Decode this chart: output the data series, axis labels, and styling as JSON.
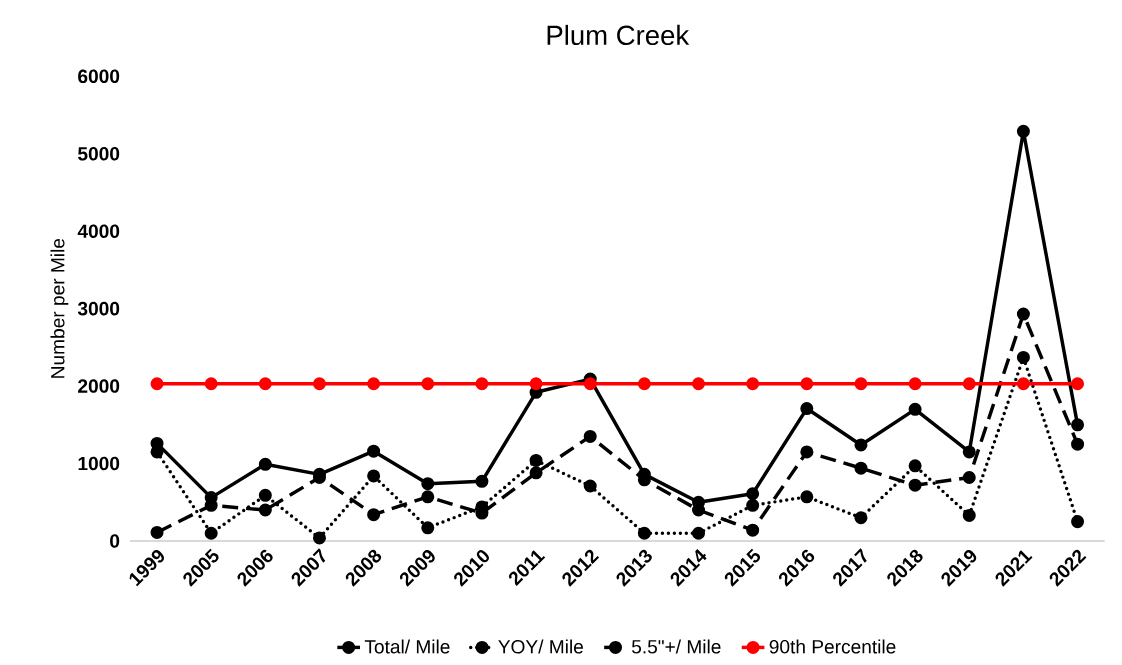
{
  "chart_data": {
    "type": "line",
    "title": "Plum Creek",
    "ylabel": "Number per Mile",
    "categories": [
      "1999",
      "2005",
      "2006",
      "2007",
      "2008",
      "2009",
      "2010",
      "2011",
      "2012",
      "2013",
      "2014",
      "2015",
      "2016",
      "2017",
      "2018",
      "2019",
      "2021",
      "2022"
    ],
    "series": [
      {
        "name": "Total/ Mile",
        "color": "#000000",
        "line_style": "solid",
        "values": [
          1260,
          560,
          990,
          860,
          1160,
          740,
          770,
          1920,
          2090,
          860,
          500,
          610,
          1710,
          1240,
          1700,
          1150,
          5290,
          1500
        ]
      },
      {
        "name": "YOY/ Mile",
        "color": "#000000",
        "line_style": "dotted",
        "values": [
          1150,
          100,
          590,
          40,
          840,
          170,
          440,
          1040,
          710,
          100,
          100,
          460,
          570,
          300,
          970,
          330,
          2370,
          250
        ]
      },
      {
        "name": "5.5\"+/ Mile",
        "color": "#000000",
        "line_style": "dashed",
        "values": [
          110,
          460,
          400,
          820,
          340,
          570,
          360,
          880,
          1350,
          790,
          400,
          140,
          1150,
          940,
          720,
          820,
          2930,
          1250
        ]
      },
      {
        "name": "90th Percentile",
        "color": "#ff0000",
        "line_style": "solid",
        "values": [
          2030,
          2030,
          2030,
          2030,
          2030,
          2030,
          2030,
          2030,
          2030,
          2030,
          2030,
          2030,
          2030,
          2030,
          2030,
          2030,
          2030,
          2030
        ]
      }
    ],
    "ylim": [
      0,
      6000
    ],
    "yticks": [
      0,
      1000,
      2000,
      3000,
      4000,
      5000,
      6000
    ],
    "grid": false,
    "legend": "bottom",
    "marker": "circle"
  }
}
